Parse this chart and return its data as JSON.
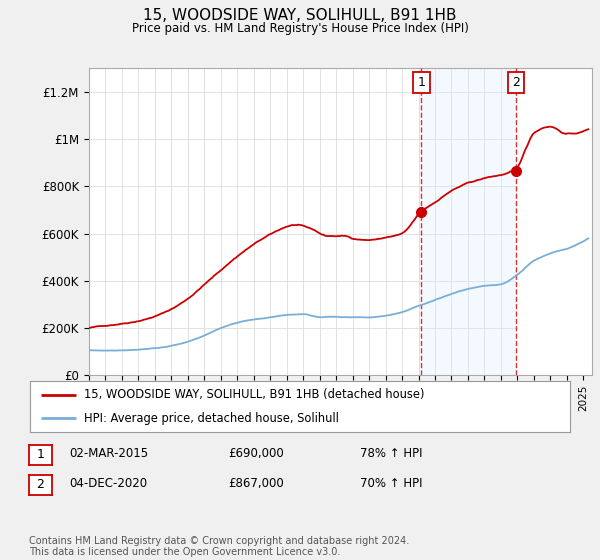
{
  "title": "15, WOODSIDE WAY, SOLIHULL, B91 1HB",
  "subtitle": "Price paid vs. HM Land Registry's House Price Index (HPI)",
  "ylabel_ticks": [
    "£0",
    "£200K",
    "£400K",
    "£600K",
    "£800K",
    "£1M",
    "£1.2M"
  ],
  "ytick_values": [
    0,
    200000,
    400000,
    600000,
    800000,
    1000000,
    1200000
  ],
  "ylim": [
    0,
    1300000
  ],
  "xlim_start": 1995.0,
  "xlim_end": 2025.5,
  "red_line_color": "#cc0000",
  "blue_line_color": "#7aaed6",
  "sale1_x": 2015.17,
  "sale1_y": 690000,
  "sale2_x": 2020.92,
  "sale2_y": 867000,
  "vline_color": "#cc0000",
  "shade_color": "#ddeeff",
  "legend_label_red": "15, WOODSIDE WAY, SOLIHULL, B91 1HB (detached house)",
  "legend_label_blue": "HPI: Average price, detached house, Solihull",
  "table_row1": [
    "1",
    "02-MAR-2015",
    "£690,000",
    "78% ↑ HPI"
  ],
  "table_row2": [
    "2",
    "04-DEC-2020",
    "£867,000",
    "70% ↑ HPI"
  ],
  "footnote": "Contains HM Land Registry data © Crown copyright and database right 2024.\nThis data is licensed under the Open Government Licence v3.0.",
  "background_color": "#f0f0f0",
  "plot_bg_color": "#ffffff",
  "red_key_points": [
    [
      1995.0,
      200000
    ],
    [
      1996.5,
      215000
    ],
    [
      1998.0,
      235000
    ],
    [
      1999.0,
      255000
    ],
    [
      2000.0,
      285000
    ],
    [
      2001.0,
      330000
    ],
    [
      2002.0,
      390000
    ],
    [
      2003.0,
      450000
    ],
    [
      2004.0,
      510000
    ],
    [
      2005.0,
      560000
    ],
    [
      2006.0,
      600000
    ],
    [
      2007.5,
      640000
    ],
    [
      2008.5,
      620000
    ],
    [
      2009.5,
      590000
    ],
    [
      2010.5,
      590000
    ],
    [
      2011.0,
      580000
    ],
    [
      2012.0,
      575000
    ],
    [
      2013.0,
      585000
    ],
    [
      2014.0,
      600000
    ],
    [
      2015.17,
      690000
    ],
    [
      2016.0,
      730000
    ],
    [
      2017.0,
      780000
    ],
    [
      2018.0,
      810000
    ],
    [
      2019.0,
      830000
    ],
    [
      2020.92,
      867000
    ],
    [
      2021.5,
      950000
    ],
    [
      2022.0,
      1020000
    ],
    [
      2023.0,
      1050000
    ],
    [
      2024.0,
      1020000
    ],
    [
      2025.3,
      1040000
    ]
  ],
  "blue_key_points": [
    [
      1995.0,
      105000
    ],
    [
      1996.0,
      105000
    ],
    [
      1997.0,
      108000
    ],
    [
      1998.0,
      112000
    ],
    [
      1999.0,
      118000
    ],
    [
      2000.0,
      128000
    ],
    [
      2001.0,
      145000
    ],
    [
      2002.0,
      170000
    ],
    [
      2003.0,
      200000
    ],
    [
      2004.0,
      225000
    ],
    [
      2005.0,
      238000
    ],
    [
      2006.0,
      248000
    ],
    [
      2007.0,
      258000
    ],
    [
      2008.0,
      262000
    ],
    [
      2009.0,
      250000
    ],
    [
      2010.0,
      252000
    ],
    [
      2011.0,
      250000
    ],
    [
      2012.0,
      248000
    ],
    [
      2013.0,
      255000
    ],
    [
      2014.0,
      270000
    ],
    [
      2015.0,
      295000
    ],
    [
      2016.0,
      320000
    ],
    [
      2017.0,
      345000
    ],
    [
      2018.0,
      365000
    ],
    [
      2019.0,
      375000
    ],
    [
      2020.0,
      380000
    ],
    [
      2021.0,
      420000
    ],
    [
      2022.0,
      480000
    ],
    [
      2023.0,
      510000
    ],
    [
      2024.0,
      530000
    ],
    [
      2025.3,
      575000
    ]
  ]
}
